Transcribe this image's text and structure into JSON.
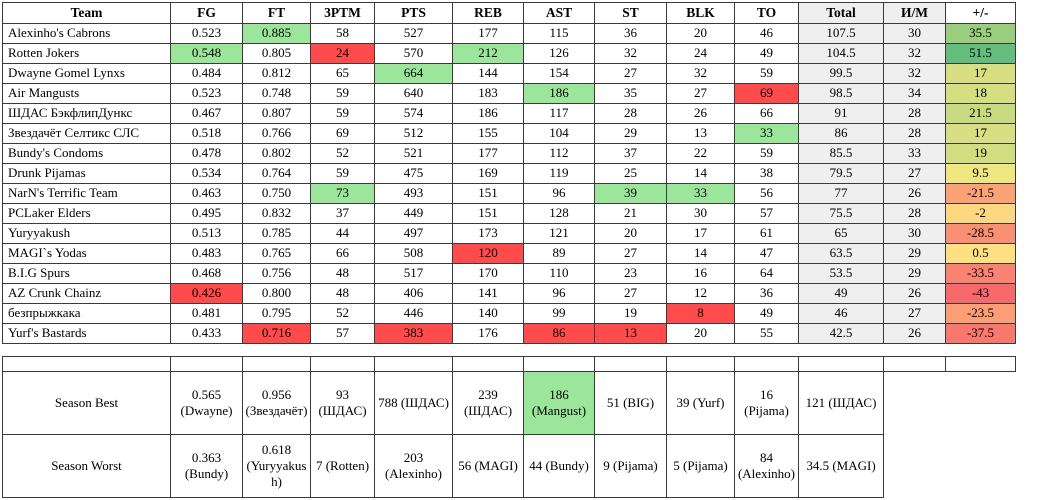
{
  "colors": {
    "green": "#9CE69C",
    "red": "#FF4B4B",
    "gray": "#EFEFEF",
    "border": "#3a3a3a"
  },
  "columns": [
    "Team",
    "FG",
    "FT",
    "3PTM",
    "PTS",
    "REB",
    "AST",
    "ST",
    "BLK",
    "TO",
    "Total",
    "И/М",
    "+/-"
  ],
  "gray_columns": [
    10,
    11
  ],
  "rows": [
    {
      "cells": [
        "Alexinho's Cabrons",
        "0.523",
        "0.885",
        "58",
        "527",
        "177",
        "115",
        "36",
        "20",
        "46",
        "107.5",
        "30",
        "35.5"
      ],
      "bg": {
        "2": "green",
        "12": "#99CE7E"
      }
    },
    {
      "cells": [
        "Rotten Jokers",
        "0.548",
        "0.805",
        "24",
        "570",
        "212",
        "126",
        "32",
        "24",
        "49",
        "104.5",
        "32",
        "51.5"
      ],
      "bg": {
        "1": "green",
        "3": "red",
        "5": "green",
        "12": "#63BE7B"
      }
    },
    {
      "cells": [
        "Dwayne Gomel Lynxs",
        "0.484",
        "0.812",
        "65",
        "664",
        "144",
        "154",
        "27",
        "32",
        "59",
        "99.5",
        "32",
        "17"
      ],
      "bg": {
        "4": "green",
        "12": "#D7DF82"
      }
    },
    {
      "cells": [
        "Air Mangusts",
        "0.523",
        "0.748",
        "59",
        "640",
        "183",
        "186",
        "35",
        "27",
        "69",
        "98.5",
        "34",
        "18"
      ],
      "bg": {
        "6": "green",
        "9": "red",
        "12": "#D4DF82"
      }
    },
    {
      "cells": [
        "ШДАС БэкфлипДункс",
        "0.467",
        "0.807",
        "59",
        "574",
        "186",
        "117",
        "28",
        "26",
        "66",
        "91",
        "28",
        "21.5"
      ],
      "bg": {
        "12": "#C8DB81"
      }
    },
    {
      "cells": [
        "Звездачёт Селтикс СЛС",
        "0.518",
        "0.766",
        "69",
        "512",
        "155",
        "104",
        "29",
        "13",
        "33",
        "86",
        "28",
        "17"
      ],
      "bg": {
        "9": "green",
        "12": "#D7DF82"
      }
    },
    {
      "cells": [
        "Bundy's Condoms",
        "0.478",
        "0.802",
        "52",
        "521",
        "177",
        "112",
        "37",
        "22",
        "59",
        "85.5",
        "33",
        "19"
      ],
      "bg": {
        "12": "#D0DE81"
      }
    },
    {
      "cells": [
        "Drunk Pijamas",
        "0.534",
        "0.764",
        "59",
        "475",
        "169",
        "119",
        "25",
        "14",
        "38",
        "79.5",
        "27",
        "9.5"
      ],
      "bg": {
        "12": "#F0E783"
      }
    },
    {
      "cells": [
        "NarN's Terrific Team",
        "0.463",
        "0.750",
        "73",
        "493",
        "151",
        "96",
        "39",
        "33",
        "56",
        "77",
        "26",
        "-21.5"
      ],
      "bg": {
        "3": "green",
        "7": "green",
        "8": "green",
        "12": "#FBA376"
      }
    },
    {
      "cells": [
        "PCLaker Elders",
        "0.495",
        "0.832",
        "37",
        "449",
        "151",
        "128",
        "21",
        "30",
        "57",
        "75.5",
        "28",
        "-2"
      ],
      "bg": {
        "12": "#FED880"
      }
    },
    {
      "cells": [
        "Yuryyakush",
        "0.513",
        "0.785",
        "44",
        "497",
        "173",
        "121",
        "20",
        "17",
        "61",
        "65",
        "30",
        "-28.5"
      ],
      "bg": {
        "12": "#FA9073"
      }
    },
    {
      "cells": [
        "MAGI`s Yodas",
        "0.483",
        "0.765",
        "66",
        "508",
        "120",
        "89",
        "27",
        "14",
        "47",
        "63.5",
        "29",
        "0.5"
      ],
      "bg": {
        "5": "red",
        "12": "#FEDF82"
      }
    },
    {
      "cells": [
        "B.I.G Spurs",
        "0.468",
        "0.756",
        "48",
        "517",
        "170",
        "110",
        "23",
        "16",
        "64",
        "53.5",
        "29",
        "-33.5"
      ],
      "bg": {
        "12": "#F98370"
      }
    },
    {
      "cells": [
        "AZ Crunk Chainz",
        "0.426",
        "0.800",
        "48",
        "406",
        "141",
        "96",
        "27",
        "12",
        "36",
        "49",
        "26",
        "-43"
      ],
      "bg": {
        "1": "red",
        "12": "#F8696B"
      }
    },
    {
      "cells": [
        "безпрыжкака",
        "0.481",
        "0.795",
        "52",
        "446",
        "140",
        "99",
        "19",
        "8",
        "49",
        "46",
        "27",
        "-23.5"
      ],
      "bg": {
        "8": "red",
        "12": "#FB9E75"
      }
    },
    {
      "cells": [
        "Yurf's Bastards",
        "0.433",
        "0.716",
        "57",
        "383",
        "176",
        "86",
        "13",
        "20",
        "55",
        "42.5",
        "26",
        "-37.5"
      ],
      "bg": {
        "2": "red",
        "4": "red",
        "6": "red",
        "7": "red",
        "12": "#F9786E"
      }
    }
  ],
  "season": [
    {
      "label": "Season Best",
      "cells": [
        "0.565 (Dwayne)",
        "0.956 (Звездачёт)",
        "93 (ШДАС)",
        "788 (ШДАС)",
        "239 (ШДАС)",
        "186 (Mangust)",
        "51 (BIG)",
        "39 (Yurf)",
        "16 (Pijama)",
        "121 (ШДАС)"
      ],
      "bg": {
        "5": "green"
      }
    },
    {
      "label": "Season Worst",
      "cells": [
        "0.363 (Bundy)",
        "0.618 (Yuryyakush)",
        "7 (Rotten)",
        "203 (Alexinho)",
        "56 (MAGI)",
        "44 (Bundy)",
        "9 (Pijama)",
        "5 (Pijama)",
        "84 (Alexinho)",
        "34.5 (MAGI)"
      ],
      "bg": {}
    }
  ]
}
